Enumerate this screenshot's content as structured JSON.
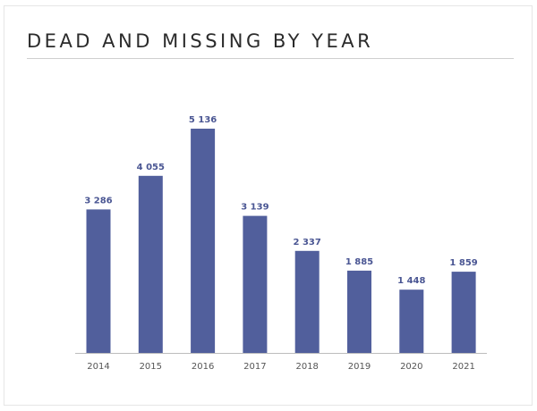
{
  "title": "DEAD AND MISSING BY YEAR",
  "colors": {
    "bar": "#515f9c",
    "value_label": "#4a5693",
    "tick_label": "#555555",
    "baseline": "#bdbdbd"
  },
  "chart_data": {
    "type": "bar",
    "title": "DEAD AND MISSING BY YEAR",
    "categories": [
      "2014",
      "2015",
      "2016",
      "2017",
      "2018",
      "2019",
      "2020",
      "2021"
    ],
    "values": [
      3286,
      4055,
      5136,
      3139,
      2337,
      1885,
      1448,
      1859
    ],
    "value_labels": [
      "3 286",
      "4 055",
      "5 136",
      "3 139",
      "2 337",
      "1 885",
      "1 448",
      "1 859"
    ],
    "xlabel": "",
    "ylabel": "",
    "ylim": [
      0,
      5136
    ],
    "grid": false,
    "legend": "none"
  }
}
